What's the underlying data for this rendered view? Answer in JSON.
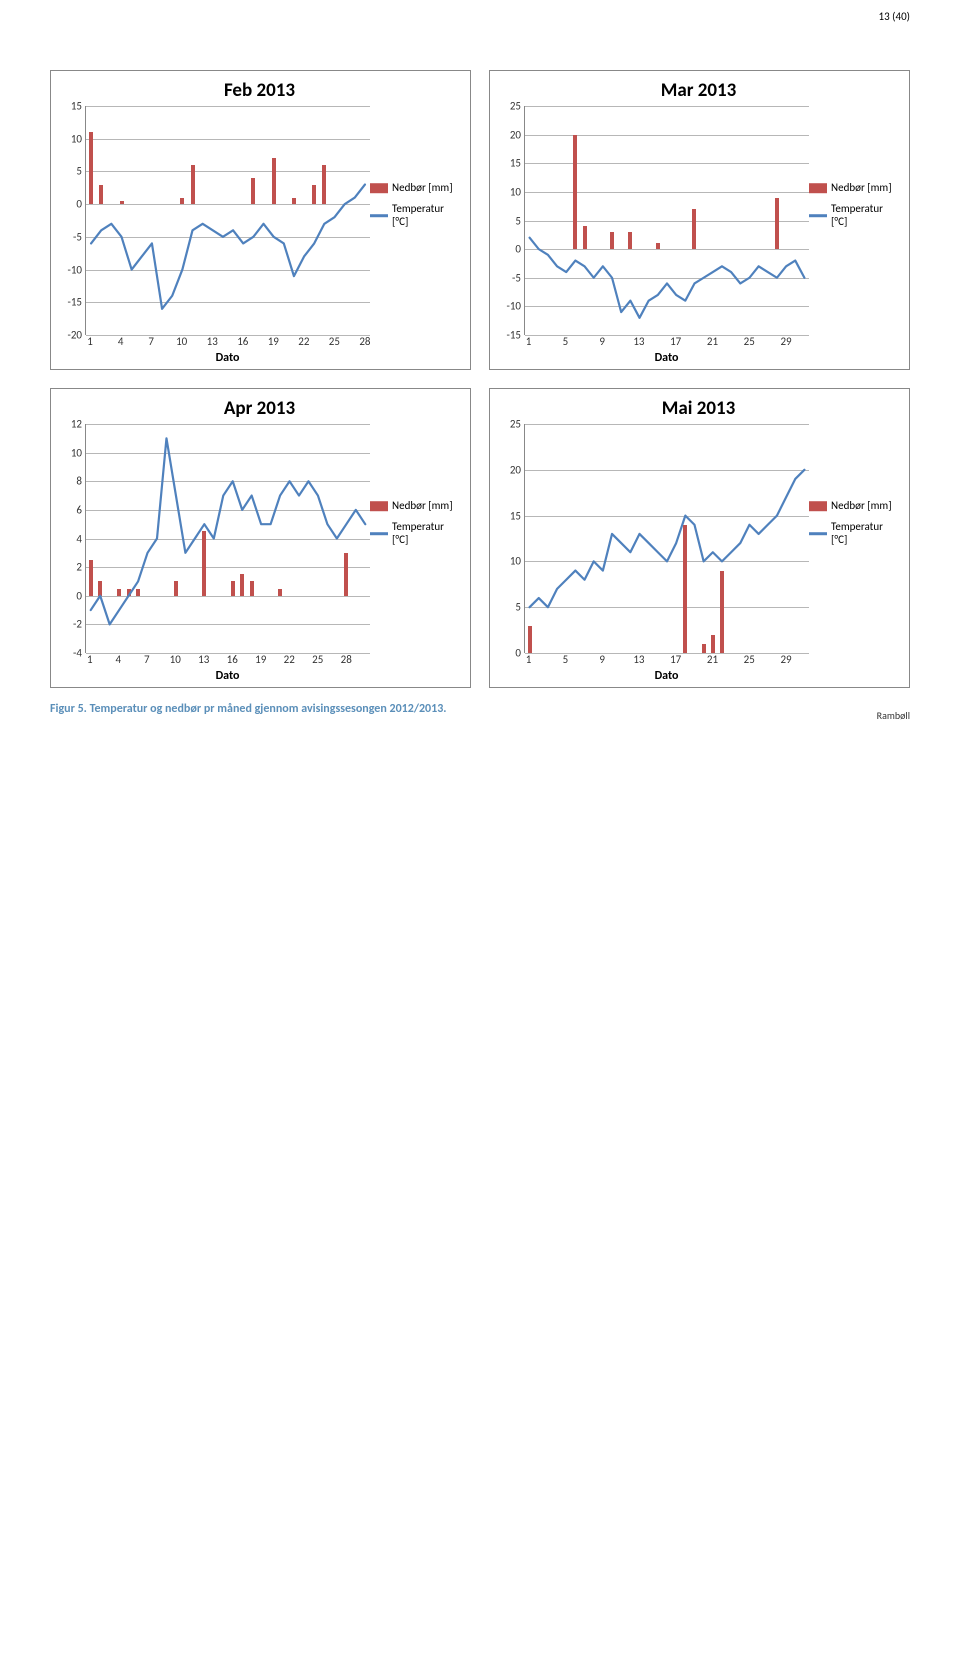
{
  "pageNumber": "13 (40)",
  "footer": "Rambøll",
  "caption": "Figur 5. Temperatur og nedbør pr måned gjennom avisingssesongen 2012/2013.",
  "legend": {
    "precip": {
      "label": "Nedbør [mm]",
      "color": "#c0504d"
    },
    "temp": {
      "label": "Temperatur [°C]",
      "color": "#4f81bd"
    }
  },
  "xlabel": "Dato",
  "charts": [
    {
      "title": "Feb 2013",
      "ymin": -20,
      "ymax": 15,
      "ystep": 5,
      "xticks": [
        1,
        4,
        7,
        10,
        13,
        16,
        19,
        22,
        25,
        28
      ],
      "ndays": 28,
      "precip": [
        11,
        3,
        0,
        0.5,
        0,
        0,
        0,
        0,
        0,
        1,
        6,
        0,
        0,
        0,
        0,
        0,
        4,
        0,
        7,
        0,
        1,
        0,
        3,
        6,
        0,
        0,
        0,
        0
      ],
      "temp": [
        -6,
        -4,
        -3,
        -5,
        -10,
        -8,
        -6,
        -16,
        -14,
        -10,
        -4,
        -3,
        -4,
        -5,
        -4,
        -6,
        -5,
        -3,
        -5,
        -6,
        -11,
        -8,
        -6,
        -3,
        -2,
        0,
        1,
        3
      ]
    },
    {
      "title": "Mar 2013",
      "ymin": -15,
      "ymax": 25,
      "ystep": 5,
      "xticks": [
        1,
        5,
        9,
        13,
        17,
        21,
        25,
        29
      ],
      "ndays": 31,
      "precip": [
        0,
        0,
        0,
        0,
        0,
        20,
        4,
        0,
        0,
        3,
        0,
        3,
        0,
        0,
        1,
        0,
        0,
        0,
        7,
        0,
        0,
        0,
        0,
        0,
        0,
        0,
        0,
        9,
        0,
        0,
        0
      ],
      "temp": [
        2,
        0,
        -1,
        -3,
        -4,
        -2,
        -3,
        -5,
        -3,
        -5,
        -11,
        -9,
        -12,
        -9,
        -8,
        -6,
        -8,
        -9,
        -6,
        -5,
        -4,
        -3,
        -4,
        -6,
        -5,
        -3,
        -4,
        -5,
        -3,
        -2,
        -5
      ]
    },
    {
      "title": "Apr 2013",
      "ymin": -4,
      "ymax": 12,
      "ystep": 2,
      "xticks": [
        1,
        4,
        7,
        10,
        13,
        16,
        19,
        22,
        25,
        28
      ],
      "ndays": 30,
      "precip": [
        2.5,
        1,
        0,
        0.5,
        0.5,
        0.5,
        0,
        0,
        0,
        1,
        0,
        0,
        4.5,
        0,
        0,
        1,
        1.5,
        1,
        0,
        0,
        0.5,
        0,
        0,
        0,
        0,
        0,
        0,
        3,
        0,
        0
      ],
      "temp": [
        -1,
        0,
        -2,
        -1,
        0,
        1,
        3,
        4,
        11,
        7,
        3,
        4,
        5,
        4,
        7,
        8,
        6,
        7,
        5,
        5,
        7,
        8,
        7,
        8,
        7,
        5,
        4,
        5,
        6,
        5
      ]
    },
    {
      "title": "Mai 2013",
      "ymin": 0,
      "ymax": 25,
      "ystep": 5,
      "xticks": [
        1,
        5,
        9,
        13,
        17,
        21,
        25,
        29
      ],
      "ndays": 31,
      "precip": [
        3,
        0,
        0,
        0,
        0,
        0,
        0,
        0,
        0,
        0,
        0,
        0,
        0,
        0,
        0,
        0,
        0,
        14,
        0,
        1,
        2,
        9,
        0,
        0,
        0,
        0,
        0,
        0,
        0,
        0,
        0
      ],
      "temp": [
        5,
        6,
        5,
        7,
        8,
        9,
        8,
        10,
        9,
        13,
        12,
        11,
        13,
        12,
        11,
        10,
        12,
        15,
        14,
        10,
        11,
        10,
        11,
        12,
        14,
        13,
        14,
        15,
        17,
        19,
        20
      ]
    }
  ]
}
